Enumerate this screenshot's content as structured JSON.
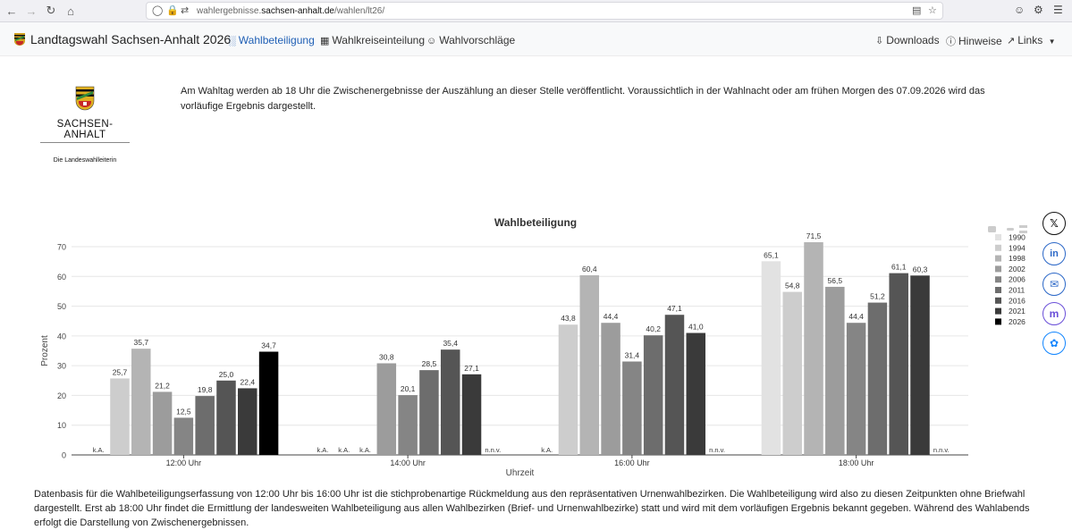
{
  "browser": {
    "url_domain_prefix": "wahlergebnisse.",
    "url_domain": "sachsen-anhalt.de",
    "url_path": "/wahlen/lt26/"
  },
  "header": {
    "title": "Landtagswahl Sachsen-Anhalt 2026",
    "nav": [
      {
        "label": "Wahlbeteiligung",
        "active": true,
        "icon": "bar-chart-icon"
      },
      {
        "label": "Wahlkreiseinteilung",
        "active": false,
        "icon": "map-icon"
      },
      {
        "label": "Wahlvorschläge",
        "active": false,
        "icon": "person-icon"
      }
    ],
    "right": [
      {
        "label": "Downloads",
        "icon": "download-icon"
      },
      {
        "label": "Hinweise",
        "icon": "info-icon"
      },
      {
        "label": "Links",
        "icon": "external-link-icon"
      }
    ]
  },
  "logo": {
    "name": "SACHSEN-ANHALT",
    "subtitle": "Die Landeswahlleiterin"
  },
  "intro_text": "Am Wahltag werden ab 18 Uhr die Zwischenergebnisse der Auszählung an dieser Stelle veröffentlicht. Voraussichtlich in der Wahlnacht oder am frühen Morgen des 07.09.2026 wird das vorläufige Ergebnis dargestellt.",
  "footer_text": "Datenbasis für die Wahlbeteiligungserfassung von 12:00 Uhr bis 16:00 Uhr ist die stichprobenartige Rückmeldung aus den repräsentativen Urnenwahlbezirken. Die Wahlbeteiligung wird also zu diesen Zeitpunkten ohne Briefwahl dargestellt. Erst ab 18:00 Uhr findet die Ermittlung der landesweiten Wahlbeteiligung aus allen Wahlbezirken (Brief- und Urnenwahlbezirke) statt und wird mit dem vorläufigen Ergebnis bekannt gegeben. Während des Wahlabends erfolgt die Darstellung von Zwischenergebnissen.",
  "colors": {
    "accent": "#1f5fb5",
    "series": [
      "#e2e2e2",
      "#cdcdcd",
      "#b4b4b4",
      "#9c9c9c",
      "#858585",
      "#6d6d6d",
      "#555555",
      "#3a3a3a",
      "#000000"
    ]
  },
  "chart_data": {
    "type": "bar",
    "title": "Wahlbeteiligung",
    "xlabel": "Uhrzeit",
    "ylabel": "Prozent",
    "ylim": [
      0,
      70
    ],
    "yticks": [
      0,
      10,
      20,
      30,
      40,
      50,
      60,
      70
    ],
    "legend_position": "right",
    "categories": [
      "12:00 Uhr",
      "14:00 Uhr",
      "16:00 Uhr",
      "18:00 Uhr"
    ],
    "series": [
      {
        "name": "1990",
        "values": [
          null,
          null,
          null,
          65.1
        ],
        "labels": [
          "k.A.",
          "k.A.",
          "k.A.",
          "65,1"
        ]
      },
      {
        "name": "1994",
        "values": [
          25.7,
          null,
          43.8,
          54.8
        ],
        "labels": [
          "25,7",
          "k.A.",
          "43,8",
          "54,8"
        ]
      },
      {
        "name": "1998",
        "values": [
          35.7,
          null,
          60.4,
          71.5
        ],
        "labels": [
          "35,7",
          "k.A.",
          "60,4",
          "71,5"
        ]
      },
      {
        "name": "2002",
        "values": [
          21.2,
          30.8,
          44.4,
          56.5
        ],
        "labels": [
          "21,2",
          "30,8",
          "44,4",
          "56,5"
        ]
      },
      {
        "name": "2006",
        "values": [
          12.5,
          20.1,
          31.4,
          44.4
        ],
        "labels": [
          "12,5",
          "20,1",
          "31,4",
          "44,4"
        ]
      },
      {
        "name": "2011",
        "values": [
          19.8,
          28.5,
          40.2,
          51.2
        ],
        "labels": [
          "19,8",
          "28,5",
          "40,2",
          "51,2"
        ]
      },
      {
        "name": "2016",
        "values": [
          25.0,
          35.4,
          47.1,
          61.1
        ],
        "labels": [
          "25,0",
          "35,4",
          "47,1",
          "61,1"
        ]
      },
      {
        "name": "2021",
        "values": [
          22.4,
          27.1,
          41.0,
          60.3
        ],
        "labels": [
          "22,4",
          "27,1",
          "41,0",
          "60,3"
        ]
      },
      {
        "name": "2026",
        "values": [
          34.7,
          null,
          null,
          null
        ],
        "labels": [
          "34,7",
          "n.n.v.",
          "n.n.v.",
          "n.n.v."
        ]
      }
    ]
  }
}
